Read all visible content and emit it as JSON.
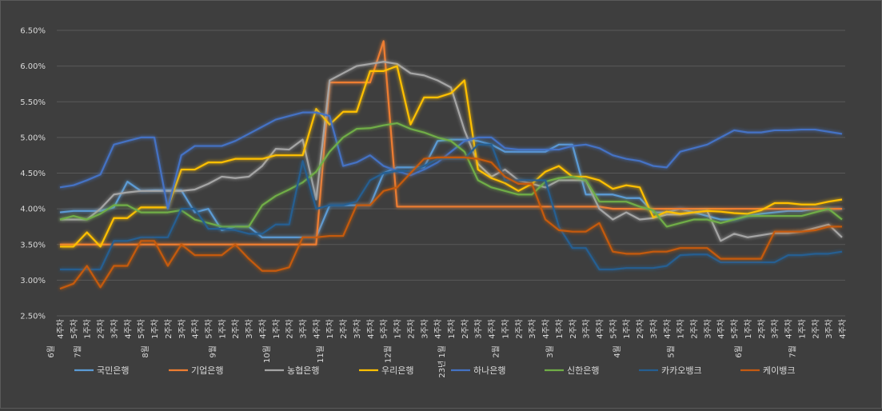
{
  "chart_data": {
    "type": "line",
    "ylim": [
      0.025,
      0.065
    ],
    "y_tick_labels": [
      "2.50%",
      "3.00%",
      "3.50%",
      "4.00%",
      "4.50%",
      "5.00%",
      "5.50%",
      "6.00%",
      "6.50%"
    ],
    "y_ticks": [
      0.025,
      0.03,
      0.035,
      0.04,
      0.045,
      0.05,
      0.055,
      0.06,
      0.065
    ],
    "grid": true,
    "legend_position": "bottom",
    "categories": [
      "6월 4주차",
      "5주차",
      "7월 1주차",
      "2주차",
      "3주차",
      "4주차",
      "5주차",
      "8월 1주차",
      "2주차",
      "3주차",
      "4주차",
      "5주차",
      "9월 1주차",
      "2주차",
      "3주차",
      "4주차",
      "10월 1주차",
      "2주차",
      "3주차",
      "4주차",
      "11월 1주차",
      "2주차",
      "3주차",
      "4주차",
      "5주차",
      "12월 1주차",
      "2주차",
      "3주차",
      "4주차",
      "23년 1월 1주차",
      "2주차",
      "3주차",
      "4주차",
      "2월 1주차",
      "2주차",
      "3주차",
      "4주차",
      "3월 1주차",
      "2주차",
      "3주차",
      "4주차",
      "5주차",
      "4월 1주차",
      "2주차",
      "3주차",
      "4주차",
      "5월 1주차",
      "2주차",
      "3주차",
      "4주차",
      "5주차",
      "6월 1주차",
      "2주차",
      "3주차",
      "4주차",
      "7월 1주차",
      "2주차",
      "3주차",
      "4주차"
    ],
    "x_tick_labels": [
      {
        "line1": "4주차",
        "line2": "6월"
      },
      {
        "line1": "5주차",
        "line2": ""
      },
      {
        "line1": "1주차",
        "line2": "7월"
      },
      {
        "line1": "2주차",
        "line2": ""
      },
      {
        "line1": "3주차",
        "line2": ""
      },
      {
        "line1": "4주차",
        "line2": ""
      },
      {
        "line1": "5주차",
        "line2": ""
      },
      {
        "line1": "1주차",
        "line2": "8월"
      },
      {
        "line1": "2주차",
        "line2": ""
      },
      {
        "line1": "3주차",
        "line2": ""
      },
      {
        "line1": "4주차",
        "line2": ""
      },
      {
        "line1": "5주차",
        "line2": ""
      },
      {
        "line1": "1주차",
        "line2": "9월"
      },
      {
        "line1": "2주차",
        "line2": ""
      },
      {
        "line1": "3주차",
        "line2": ""
      },
      {
        "line1": "4주차",
        "line2": ""
      },
      {
        "line1": "1주차",
        "line2": "10월"
      },
      {
        "line1": "2주차",
        "line2": ""
      },
      {
        "line1": "3주차",
        "line2": ""
      },
      {
        "line1": "4주차",
        "line2": ""
      },
      {
        "line1": "1주차",
        "line2": "11월"
      },
      {
        "line1": "2주차",
        "line2": ""
      },
      {
        "line1": "3주차",
        "line2": ""
      },
      {
        "line1": "4주차",
        "line2": ""
      },
      {
        "line1": "5주차",
        "line2": ""
      },
      {
        "line1": "1주차",
        "line2": "12월"
      },
      {
        "line1": "2주차",
        "line2": ""
      },
      {
        "line1": "3주차",
        "line2": ""
      },
      {
        "line1": "4주차",
        "line2": ""
      },
      {
        "line1": "1주차",
        "line2": "23년 1월"
      },
      {
        "line1": "2주차",
        "line2": ""
      },
      {
        "line1": "3주차",
        "line2": ""
      },
      {
        "line1": "4주차",
        "line2": ""
      },
      {
        "line1": "1주차",
        "line2": "2월"
      },
      {
        "line1": "2주차",
        "line2": ""
      },
      {
        "line1": "3주차",
        "line2": ""
      },
      {
        "line1": "4주차",
        "line2": ""
      },
      {
        "line1": "1주차",
        "line2": "3월"
      },
      {
        "line1": "2주차",
        "line2": ""
      },
      {
        "line1": "3주차",
        "line2": ""
      },
      {
        "line1": "4주차",
        "line2": ""
      },
      {
        "line1": "5주차",
        "line2": ""
      },
      {
        "line1": "1주차",
        "line2": "4월"
      },
      {
        "line1": "2주차",
        "line2": ""
      },
      {
        "line1": "3주차",
        "line2": ""
      },
      {
        "line1": "4주차",
        "line2": ""
      },
      {
        "line1": "1주차",
        "line2": "5월"
      },
      {
        "line1": "2주차",
        "line2": ""
      },
      {
        "line1": "3주차",
        "line2": ""
      },
      {
        "line1": "4주차",
        "line2": ""
      },
      {
        "line1": "5주차",
        "line2": ""
      },
      {
        "line1": "1주차",
        "line2": "6월"
      },
      {
        "line1": "2주차",
        "line2": ""
      },
      {
        "line1": "3주차",
        "line2": ""
      },
      {
        "line1": "4주차",
        "line2": ""
      },
      {
        "line1": "1주차",
        "line2": "7월"
      },
      {
        "line1": "2주차",
        "line2": ""
      },
      {
        "line1": "3주차",
        "line2": ""
      },
      {
        "line1": "4주차",
        "line2": ""
      }
    ],
    "series": [
      {
        "name": "국민은행",
        "color": "#5b9bd5",
        "values": [
          0.0395,
          0.0397,
          0.0397,
          0.0397,
          0.0402,
          0.0438,
          0.0425,
          0.0426,
          0.0426,
          0.0426,
          0.0395,
          0.04,
          0.037,
          0.0375,
          0.0375,
          0.036,
          0.036,
          0.036,
          0.036,
          0.036,
          0.0405,
          0.0405,
          0.0405,
          0.0405,
          0.045,
          0.0458,
          0.0458,
          0.0458,
          0.0495,
          0.0497,
          0.0497,
          0.0495,
          0.049,
          0.048,
          0.048,
          0.048,
          0.048,
          0.049,
          0.049,
          0.042,
          0.042,
          0.042,
          0.0415,
          0.0415,
          0.0395,
          0.0395,
          0.04,
          0.0395,
          0.039,
          0.0385,
          0.0385,
          0.039,
          0.0393,
          0.0395,
          0.0397,
          0.0397,
          0.04,
          0.04,
          0.04
        ]
      },
      {
        "name": "기업은행",
        "color": "#ed7d31",
        "values": [
          0.035,
          0.035,
          0.035,
          0.035,
          0.035,
          0.035,
          0.035,
          0.035,
          0.035,
          0.035,
          0.035,
          0.035,
          0.035,
          0.035,
          0.035,
          0.035,
          0.035,
          0.035,
          0.035,
          0.035,
          0.0577,
          0.0577,
          0.0577,
          0.0577,
          0.0635,
          0.0403,
          0.0403,
          0.0403,
          0.0403,
          0.0403,
          0.0403,
          0.0403,
          0.0403,
          0.0403,
          0.0403,
          0.0403,
          0.0403,
          0.0403,
          0.0403,
          0.0403,
          0.0403,
          0.04,
          0.04,
          0.04,
          0.04,
          0.04,
          0.04,
          0.04,
          0.04,
          0.04,
          0.04,
          0.04,
          0.04,
          0.04,
          0.04,
          0.04,
          0.04,
          0.04,
          0.04
        ]
      },
      {
        "name": "농협은행",
        "color": "#a5a5a5",
        "values": [
          0.0385,
          0.0385,
          0.0385,
          0.04,
          0.042,
          0.0423,
          0.0425,
          0.0425,
          0.0425,
          0.0425,
          0.0427,
          0.0435,
          0.0445,
          0.0443,
          0.0445,
          0.046,
          0.0484,
          0.0483,
          0.0497,
          0.0413,
          0.058,
          0.059,
          0.06,
          0.0603,
          0.0606,
          0.0603,
          0.059,
          0.0587,
          0.058,
          0.057,
          0.051,
          0.0463,
          0.0445,
          0.0455,
          0.044,
          0.0435,
          0.043,
          0.044,
          0.044,
          0.044,
          0.04,
          0.0385,
          0.0395,
          0.0385,
          0.0387,
          0.0392,
          0.0392,
          0.0395,
          0.0397,
          0.0355,
          0.0365,
          0.036,
          0.0363,
          0.0366,
          0.0366,
          0.0368,
          0.0373,
          0.0378,
          0.036
        ]
      },
      {
        "name": "우리은행",
        "color": "#ffc000",
        "values": [
          0.0347,
          0.0347,
          0.0367,
          0.0347,
          0.0387,
          0.0387,
          0.0402,
          0.0402,
          0.0402,
          0.0455,
          0.0455,
          0.0465,
          0.0465,
          0.047,
          0.047,
          0.047,
          0.0475,
          0.0475,
          0.0475,
          0.054,
          0.0518,
          0.0536,
          0.0536,
          0.0593,
          0.0593,
          0.06,
          0.0518,
          0.0556,
          0.0556,
          0.0562,
          0.058,
          0.0455,
          0.0443,
          0.0436,
          0.0425,
          0.0435,
          0.0452,
          0.046,
          0.0445,
          0.0445,
          0.044,
          0.0428,
          0.0433,
          0.043,
          0.0388,
          0.0396,
          0.0393,
          0.0395,
          0.0397,
          0.0396,
          0.0394,
          0.0393,
          0.0398,
          0.0408,
          0.0408,
          0.0406,
          0.0406,
          0.041,
          0.0413
        ]
      },
      {
        "name": "하나은행",
        "color": "#4472c4",
        "values": [
          0.043,
          0.0433,
          0.044,
          0.0448,
          0.049,
          0.0495,
          0.05,
          0.05,
          0.04,
          0.0475,
          0.0488,
          0.0488,
          0.0488,
          0.0495,
          0.0505,
          0.0515,
          0.0525,
          0.053,
          0.0535,
          0.0535,
          0.053,
          0.046,
          0.0465,
          0.0475,
          0.046,
          0.0453,
          0.0447,
          0.0455,
          0.0465,
          0.048,
          0.0495,
          0.05,
          0.05,
          0.0485,
          0.0483,
          0.0483,
          0.0483,
          0.0483,
          0.0488,
          0.049,
          0.0485,
          0.0475,
          0.047,
          0.0467,
          0.046,
          0.0458,
          0.048,
          0.0485,
          0.049,
          0.05,
          0.051,
          0.0507,
          0.0507,
          0.051,
          0.051,
          0.0511,
          0.0511,
          0.0508,
          0.0505
        ]
      },
      {
        "name": "신한은행",
        "color": "#70ad47",
        "values": [
          0.0385,
          0.039,
          0.0385,
          0.0393,
          0.0405,
          0.0405,
          0.0395,
          0.0395,
          0.0395,
          0.0398,
          0.0385,
          0.038,
          0.0375,
          0.0375,
          0.0375,
          0.0405,
          0.0418,
          0.0427,
          0.0437,
          0.0452,
          0.048,
          0.05,
          0.0512,
          0.0513,
          0.0517,
          0.052,
          0.0512,
          0.0507,
          0.05,
          0.0495,
          0.048,
          0.044,
          0.043,
          0.0425,
          0.042,
          0.042,
          0.0438,
          0.0443,
          0.0445,
          0.044,
          0.041,
          0.041,
          0.041,
          0.0403,
          0.0398,
          0.0375,
          0.038,
          0.0385,
          0.0385,
          0.038,
          0.0385,
          0.039,
          0.039,
          0.039,
          0.039,
          0.039,
          0.0395,
          0.04,
          0.0385
        ]
      },
      {
        "name": "카카오뱅크",
        "color": "#255e91",
        "values": [
          0.0315,
          0.0315,
          0.0315,
          0.0315,
          0.0355,
          0.0355,
          0.036,
          0.036,
          0.036,
          0.04,
          0.04,
          0.0372,
          0.0372,
          0.037,
          0.0365,
          0.0365,
          0.0378,
          0.0378,
          0.0467,
          0.04,
          0.0405,
          0.0405,
          0.041,
          0.044,
          0.045,
          0.0453,
          0.0453,
          0.046,
          0.047,
          0.047,
          0.047,
          0.049,
          0.049,
          0.044,
          0.044,
          0.044,
          0.044,
          0.0375,
          0.0345,
          0.0345,
          0.0315,
          0.0315,
          0.0317,
          0.0317,
          0.0317,
          0.032,
          0.0335,
          0.0336,
          0.0336,
          0.0325,
          0.0325,
          0.0325,
          0.0325,
          0.0325,
          0.0335,
          0.0335,
          0.0337,
          0.0337,
          0.034
        ]
      },
      {
        "name": "케이뱅크",
        "color": "#c55a11",
        "values": [
          0.0288,
          0.0295,
          0.032,
          0.029,
          0.032,
          0.032,
          0.0355,
          0.0355,
          0.032,
          0.035,
          0.0335,
          0.0335,
          0.0335,
          0.035,
          0.033,
          0.0313,
          0.0313,
          0.0318,
          0.036,
          0.036,
          0.0362,
          0.0362,
          0.0405,
          0.0405,
          0.0425,
          0.043,
          0.045,
          0.047,
          0.0472,
          0.0472,
          0.0472,
          0.047,
          0.0465,
          0.0445,
          0.0435,
          0.0435,
          0.0385,
          0.037,
          0.0368,
          0.0368,
          0.038,
          0.034,
          0.0337,
          0.0337,
          0.034,
          0.034,
          0.0345,
          0.0345,
          0.0345,
          0.033,
          0.033,
          0.033,
          0.033,
          0.0368,
          0.0368,
          0.0368,
          0.037,
          0.0375,
          0.0375
        ]
      }
    ]
  }
}
